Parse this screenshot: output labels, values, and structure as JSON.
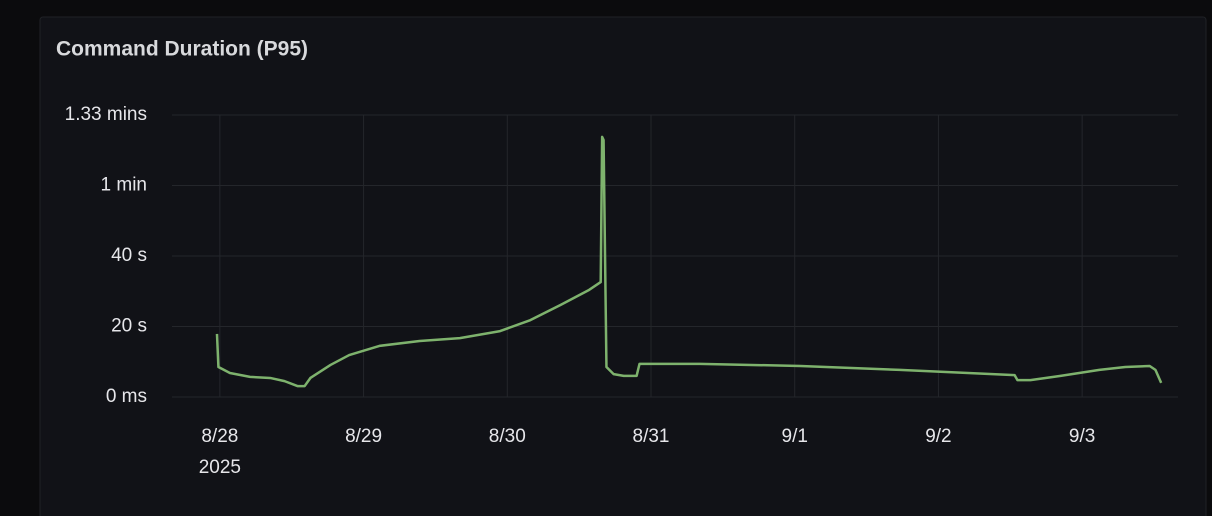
{
  "chart_data": {
    "type": "line",
    "title": "Command Duration (P95)",
    "x": [
      -0.02,
      -0.01,
      0.07,
      0.21,
      0.35,
      0.45,
      0.54,
      0.59,
      0.63,
      0.77,
      0.9,
      1.11,
      1.39,
      1.67,
      1.95,
      2.16,
      2.37,
      2.57,
      2.65,
      2.66,
      2.67,
      2.69,
      2.74,
      2.81,
      2.9,
      2.92,
      3.34,
      4.04,
      4.73,
      5.53,
      5.55,
      5.64,
      5.85,
      6.12,
      6.3,
      6.47,
      6.51,
      6.55
    ],
    "series": [
      {
        "name": "Command Duration (P95)",
        "color": "#7eb26d",
        "values": [
          17.9,
          8.5,
          6.8,
          5.7,
          5.4,
          4.5,
          3.1,
          3.1,
          5.4,
          9.1,
          11.9,
          14.5,
          15.9,
          16.7,
          18.7,
          21.8,
          26.1,
          30.4,
          32.6,
          73.8,
          72.9,
          8.5,
          6.5,
          6.0,
          6.0,
          9.4,
          9.4,
          8.8,
          7.7,
          6.2,
          4.8,
          4.8,
          6.0,
          7.7,
          8.5,
          8.8,
          7.7,
          4.0
        ]
      }
    ],
    "xlim": [
      -0.333,
      6.667
    ],
    "xticks": [
      {
        "value": 0,
        "label": "8/28"
      },
      {
        "value": 1,
        "label": "8/29"
      },
      {
        "value": 2,
        "label": "8/30"
      },
      {
        "value": 3,
        "label": "8/31"
      },
      {
        "value": 4,
        "label": "9/1"
      },
      {
        "value": 5,
        "label": "9/2"
      },
      {
        "value": 6,
        "label": "9/3"
      }
    ],
    "x_year_label": "2025",
    "ylim": [
      0,
      80
    ],
    "yticks": [
      {
        "value": 0,
        "label": "0 ms"
      },
      {
        "value": 20,
        "label": "20 s"
      },
      {
        "value": 40,
        "label": "40 s"
      },
      {
        "value": 60,
        "label": "1 min"
      },
      {
        "value": 80,
        "label": "1.33 mins"
      }
    ],
    "grid": true
  }
}
